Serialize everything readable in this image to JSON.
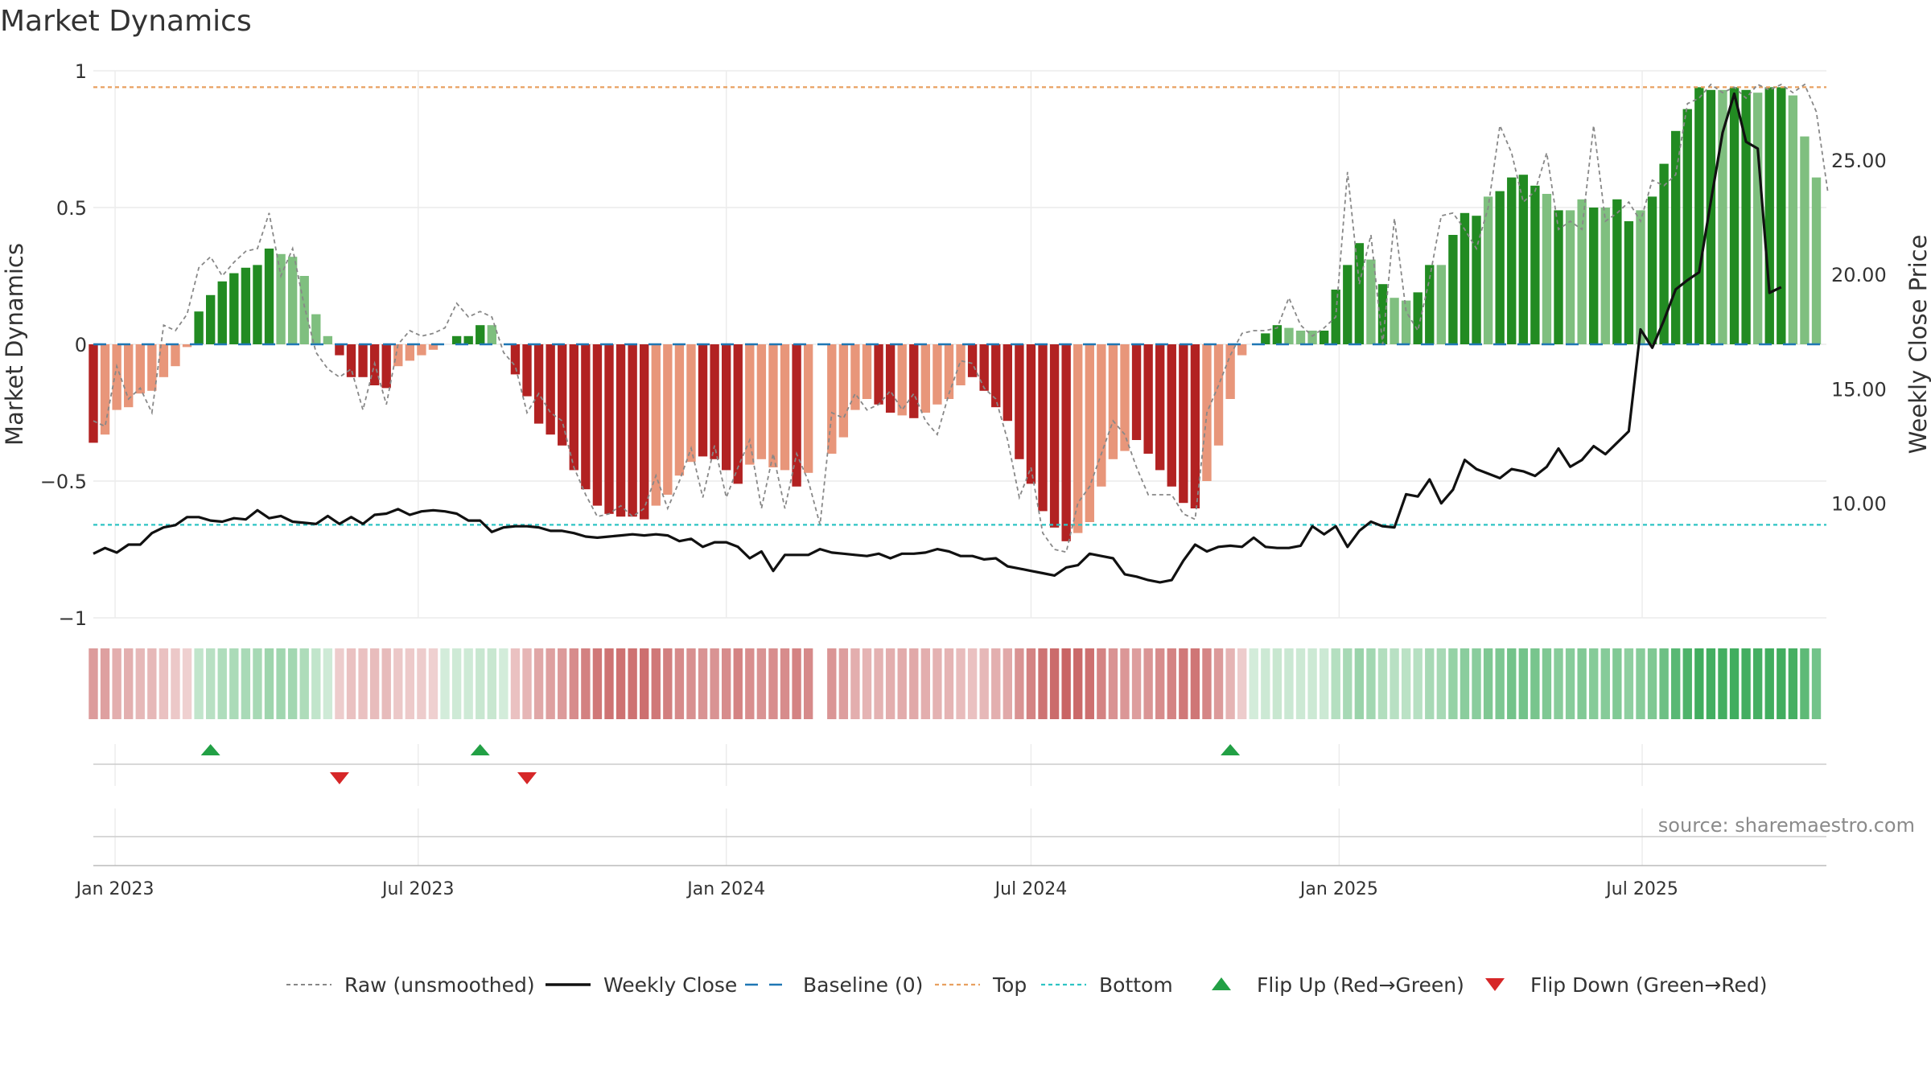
{
  "header": {
    "title": "Market Dynamics"
  },
  "footer": {
    "source": "source: sharemaestro.com"
  },
  "chart_data": {
    "type": "bar",
    "title": "Market Dynamics",
    "ylabel": "Market Dynamics",
    "ylabel_right": "Weekly Close Price",
    "ylim": [
      -1,
      1
    ],
    "ylim_right": [
      5,
      28.9
    ],
    "y_ticks": [
      1,
      0.5,
      0,
      -0.5,
      -1
    ],
    "y_tick_labels": [
      "1",
      "0.5",
      "0",
      "−0.5",
      "−1"
    ],
    "y_ticks_right": [
      10,
      15,
      20,
      25
    ],
    "y_tick_labels_right": [
      "10.00",
      "15.00",
      "20.00",
      "25.00"
    ],
    "x_range": [
      "2022-12-19",
      "2025-10-19"
    ],
    "x_ticks": [
      "2023-01-01",
      "2023-07-01",
      "2024-01-01",
      "2024-07-01",
      "2025-01-01",
      "2025-07-01"
    ],
    "x_tick_labels": [
      "Jan 2023",
      "Jul 2023",
      "Jan 2024",
      "Jul 2024",
      "Jan 2025",
      "Jul 2025"
    ],
    "grid": true,
    "legend_placement": "bottom",
    "top_level": 0.94,
    "bottom_level": -0.66,
    "baseline": 0,
    "colors": {
      "strong_up": "#228b22",
      "weak_up": "#7fbf7f",
      "strong_down": "#b22222",
      "weak_down": "#e8967a",
      "raw": "#888888",
      "close": "#111111",
      "baseline": "#1f77b4",
      "top": "#e8a060",
      "bottom": "#2ec4c4",
      "flip_up": "#22a045",
      "flip_down": "#d62728"
    },
    "start_date": "2022-12-19",
    "week_step_days": 7,
    "series": [
      {
        "name": "Market Dynamics",
        "values": [
          -0.36,
          -0.33,
          -0.24,
          -0.23,
          -0.18,
          -0.17,
          -0.12,
          -0.08,
          -0.01,
          0.12,
          0.18,
          0.23,
          0.26,
          0.28,
          0.29,
          0.35,
          0.33,
          0.32,
          0.25,
          0.11,
          0.03,
          -0.04,
          -0.12,
          -0.12,
          -0.15,
          -0.16,
          -0.08,
          -0.06,
          -0.04,
          -0.02,
          0.0,
          0.03,
          0.03,
          0.07,
          0.07,
          0.0,
          -0.11,
          -0.19,
          -0.29,
          -0.33,
          -0.37,
          -0.46,
          -0.53,
          -0.59,
          -0.62,
          -0.63,
          -0.63,
          -0.64,
          -0.59,
          -0.55,
          -0.48,
          -0.43,
          -0.41,
          -0.42,
          -0.46,
          -0.51,
          -0.44,
          -0.42,
          -0.45,
          -0.46,
          -0.52,
          -0.47,
          0.0,
          -0.4,
          -0.34,
          -0.24,
          -0.2,
          -0.22,
          -0.25,
          -0.26,
          -0.27,
          -0.25,
          -0.22,
          -0.2,
          -0.15,
          -0.12,
          -0.17,
          -0.23,
          -0.28,
          -0.42,
          -0.51,
          -0.61,
          -0.67,
          -0.72,
          -0.69,
          -0.65,
          -0.52,
          -0.42,
          -0.39,
          -0.35,
          -0.4,
          -0.46,
          -0.52,
          -0.58,
          -0.6,
          -0.5,
          -0.37,
          -0.2,
          -0.04,
          0.0,
          0.04,
          0.07,
          0.06,
          0.05,
          0.05,
          0.05,
          0.2,
          0.29,
          0.37,
          0.31,
          0.22,
          0.17,
          0.16,
          0.19,
          0.29,
          0.29,
          0.4,
          0.48,
          0.47,
          0.54,
          0.56,
          0.61,
          0.62,
          0.58,
          0.55,
          0.49,
          0.49,
          0.53,
          0.5,
          0.5,
          0.53,
          0.45,
          0.49,
          0.54,
          0.66,
          0.78,
          0.86,
          0.94,
          0.93,
          0.93,
          0.94,
          0.93,
          0.92,
          0.94,
          0.94,
          0.91,
          0.76,
          0.61
        ],
        "strength": [
          "s",
          "w",
          "w",
          "w",
          "w",
          "w",
          "w",
          "w",
          "w",
          "s",
          "s",
          "s",
          "s",
          "s",
          "s",
          "s",
          "w",
          "w",
          "w",
          "w",
          "w",
          "s",
          "s",
          "s",
          "s",
          "s",
          "w",
          "w",
          "w",
          "w",
          "w",
          "s",
          "s",
          "s",
          "w",
          "w",
          "s",
          "s",
          "s",
          "s",
          "s",
          "s",
          "s",
          "s",
          "s",
          "s",
          "s",
          "s",
          "w",
          "w",
          "w",
          "w",
          "s",
          "s",
          "s",
          "s",
          "w",
          "w",
          "w",
          "w",
          "s",
          "w",
          "w",
          "w",
          "w",
          "w",
          "w",
          "s",
          "s",
          "w",
          "s",
          "w",
          "w",
          "w",
          "w",
          "s",
          "s",
          "s",
          "s",
          "s",
          "s",
          "s",
          "s",
          "s",
          "w",
          "w",
          "w",
          "w",
          "w",
          "s",
          "s",
          "s",
          "s",
          "s",
          "s",
          "w",
          "w",
          "w",
          "w",
          "w",
          "s",
          "s",
          "w",
          "w",
          "w",
          "s",
          "s",
          "s",
          "s",
          "w",
          "s",
          "w",
          "w",
          "s",
          "s",
          "w",
          "s",
          "s",
          "s",
          "w",
          "s",
          "s",
          "s",
          "s",
          "w",
          "s",
          "w",
          "w",
          "s",
          "w",
          "s",
          "s",
          "w",
          "s",
          "s",
          "s",
          "s",
          "s",
          "s",
          "w",
          "s",
          "s",
          "w",
          "s",
          "s",
          "w",
          "w",
          "w"
        ]
      },
      {
        "name": "Raw (unsmoothed)",
        "values": [
          -0.28,
          -0.3,
          -0.08,
          -0.2,
          -0.16,
          -0.25,
          0.07,
          0.05,
          0.11,
          0.28,
          0.32,
          0.25,
          0.3,
          0.34,
          0.35,
          0.48,
          0.25,
          0.35,
          0.14,
          -0.03,
          -0.09,
          -0.12,
          -0.09,
          -0.24,
          -0.07,
          -0.22,
          0.0,
          0.05,
          0.03,
          0.04,
          0.06,
          0.15,
          0.1,
          0.12,
          0.1,
          -0.03,
          -0.08,
          -0.25,
          -0.18,
          -0.25,
          -0.28,
          -0.45,
          -0.55,
          -0.63,
          -0.62,
          -0.59,
          -0.63,
          -0.6,
          -0.48,
          -0.6,
          -0.5,
          -0.38,
          -0.56,
          -0.37,
          -0.56,
          -0.45,
          -0.35,
          -0.6,
          -0.4,
          -0.6,
          -0.4,
          -0.5,
          -0.66,
          -0.25,
          -0.27,
          -0.18,
          -0.24,
          -0.22,
          -0.17,
          -0.24,
          -0.18,
          -0.28,
          -0.33,
          -0.18,
          -0.06,
          -0.07,
          -0.16,
          -0.2,
          -0.35,
          -0.56,
          -0.45,
          -0.69,
          -0.75,
          -0.76,
          -0.58,
          -0.52,
          -0.4,
          -0.28,
          -0.33,
          -0.45,
          -0.55,
          -0.55,
          -0.55,
          -0.62,
          -0.64,
          -0.25,
          -0.15,
          -0.04,
          0.04,
          0.05,
          0.05,
          0.06,
          0.17,
          0.07,
          0.03,
          0.06,
          0.1,
          0.63,
          0.22,
          0.4,
          0.0,
          0.46,
          0.12,
          0.05,
          0.24,
          0.47,
          0.48,
          0.42,
          0.35,
          0.5,
          0.8,
          0.7,
          0.52,
          0.56,
          0.7,
          0.42,
          0.45,
          0.42,
          0.8,
          0.45,
          0.48,
          0.52,
          0.45,
          0.6,
          0.58,
          0.62,
          0.88,
          0.9,
          0.95,
          0.92,
          0.94,
          0.9,
          0.95,
          0.93,
          0.95,
          0.92,
          0.95,
          0.85,
          0.55
        ]
      },
      {
        "name": "Weekly Close",
        "values": [
          7.8,
          8.05,
          7.85,
          8.2,
          8.2,
          8.7,
          8.95,
          9.05,
          9.4,
          9.4,
          9.25,
          9.2,
          9.35,
          9.3,
          9.7,
          9.35,
          9.45,
          9.2,
          9.15,
          9.1,
          9.45,
          9.1,
          9.4,
          9.1,
          9.5,
          9.55,
          9.75,
          9.5,
          9.65,
          9.7,
          9.65,
          9.55,
          9.25,
          9.25,
          8.75,
          8.95,
          9.0,
          9.0,
          8.95,
          8.8,
          8.8,
          8.7,
          8.55,
          8.5,
          8.55,
          8.6,
          8.65,
          8.6,
          8.65,
          8.6,
          8.35,
          8.45,
          8.1,
          8.3,
          8.3,
          8.1,
          7.6,
          7.9,
          7.05,
          7.75,
          7.75,
          7.75,
          8.0,
          7.85,
          7.8,
          7.75,
          7.7,
          7.8,
          7.6,
          7.8,
          7.8,
          7.85,
          8.0,
          7.9,
          7.7,
          7.7,
          7.55,
          7.6,
          7.25,
          7.15,
          7.05,
          6.95,
          6.85,
          7.2,
          7.3,
          7.8,
          7.7,
          7.6,
          6.9,
          6.8,
          6.65,
          6.55,
          6.65,
          7.5,
          8.2,
          7.9,
          8.1,
          8.15,
          8.1,
          8.5,
          8.1,
          8.05,
          8.05,
          8.15,
          9.0,
          8.65,
          9.0,
          8.1,
          8.8,
          9.2,
          9.0,
          8.95,
          10.4,
          10.3,
          11.05,
          10.0,
          10.6,
          11.9,
          11.5,
          11.3,
          11.1,
          11.5,
          11.4,
          11.2,
          11.6,
          12.4,
          11.6,
          11.9,
          12.5,
          12.15,
          12.65,
          13.15,
          17.6,
          16.8,
          18.0,
          19.35,
          19.75,
          20.1,
          23.2,
          26.2,
          27.9,
          25.8,
          25.5,
          19.2,
          19.45
        ]
      }
    ],
    "flip_up_dates": [
      "2023-02-27",
      "2023-08-07",
      "2024-10-28"
    ],
    "flip_down_dates": [
      "2023-05-15",
      "2023-09-04"
    ],
    "legend": {
      "raw": "Raw (unsmoothed)",
      "close": "Weekly Close",
      "baseline": "Baseline (0)",
      "top": "Top",
      "bottom": "Bottom",
      "flip_up": "Flip Up (Red→Green)",
      "flip_down": "Flip Down (Green→Red)"
    }
  }
}
